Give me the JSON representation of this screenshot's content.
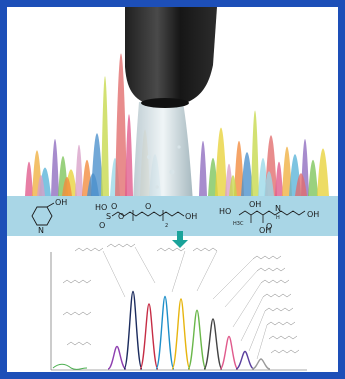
{
  "figure": {
    "background": "#ffffff",
    "border_color": "#1d4fb8",
    "band_color": "#a9d6e6",
    "arrow_color": "#1aa39a",
    "peak_colors": [
      "#e05a8c",
      "#f0b040",
      "#58b4d8",
      "#8e6bbf",
      "#7cc45a",
      "#e8d23a",
      "#d9a0c8",
      "#f28a3c",
      "#4a8fcc",
      "#c6d84a",
      "#9ad8e8",
      "#e26b6b"
    ],
    "chromatogram_colors": [
      "#8e3fb0",
      "#1c2c5e",
      "#c62d45",
      "#1e8fc9",
      "#e7b50f",
      "#6ab74a",
      "#444444",
      "#e05a8c",
      "#5a3f9e",
      "#9a9a9a"
    ]
  },
  "band": {
    "molecule_1": {
      "label": "OH",
      "ring_atom": "N"
    },
    "molecule_2": {
      "labels": [
        "HO",
        "O",
        "S",
        "O",
        "O",
        "O",
        "OH"
      ],
      "subscript": "2"
    },
    "molecule_3": {
      "labels": [
        "HO",
        "H3C",
        "OH",
        "O",
        "N",
        "H",
        "OH",
        "OH"
      ]
    }
  },
  "chart_data": {
    "type": "line",
    "series": [
      {
        "values": [
          0,
          18,
          0
        ]
      },
      {
        "values": [
          0,
          62,
          0
        ]
      },
      {
        "values": [
          0,
          52,
          0
        ]
      },
      {
        "values": [
          0,
          58,
          0
        ]
      },
      {
        "values": [
          0,
          56,
          0
        ]
      },
      {
        "values": [
          0,
          47,
          0
        ]
      },
      {
        "values": [
          0,
          40,
          0
        ]
      },
      {
        "values": [
          0,
          26,
          0
        ]
      },
      {
        "values": [
          0,
          14,
          0
        ]
      },
      {
        "values": [
          0,
          8,
          0
        ]
      }
    ]
  }
}
